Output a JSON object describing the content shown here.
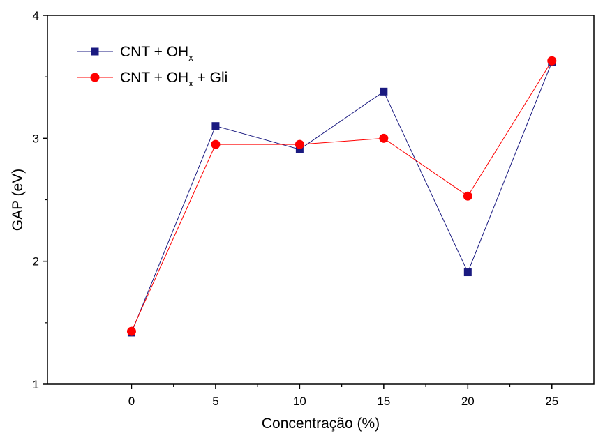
{
  "chart_data": {
    "type": "line",
    "xlabel": "Concentração (%)",
    "ylabel": "GAP (eV)",
    "xlim": [
      -5,
      27.5
    ],
    "ylim": [
      1,
      4
    ],
    "xticks": [
      "0",
      "5",
      "10",
      "15",
      "20",
      "25"
    ],
    "yticks": [
      "1",
      "2",
      "3",
      "4"
    ],
    "x": [
      0,
      5,
      10,
      15,
      20,
      25
    ],
    "series": [
      {
        "name": "CNT + OH",
        "name_subscript": "x",
        "values": [
          1.42,
          3.1,
          2.91,
          3.38,
          1.91,
          3.62
        ],
        "color": "#1a1a80",
        "marker": "square"
      },
      {
        "name": "CNT + OH",
        "name_subscript": "x",
        "name_suffix": " + Gli",
        "values": [
          1.43,
          2.95,
          2.95,
          3.0,
          2.53,
          3.63
        ],
        "color": "#ff0000",
        "marker": "circle"
      }
    ],
    "grid": false,
    "legend_position": "top-left"
  }
}
